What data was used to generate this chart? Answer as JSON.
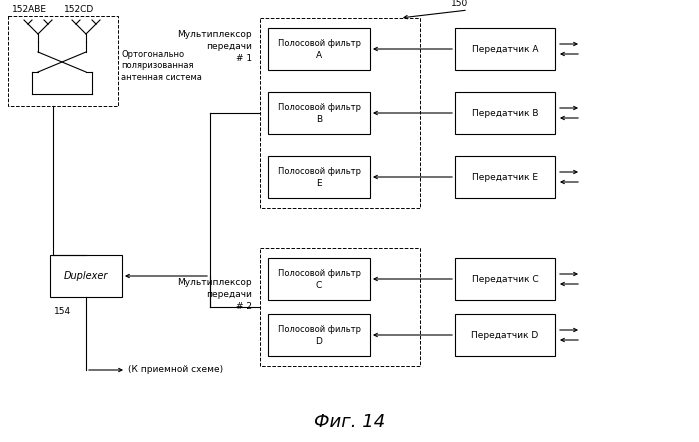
{
  "title": "Фиг. 14",
  "bg_color": "#ffffff",
  "label_150": "150",
  "label_152ABE": "152ABE",
  "label_152CD": "152CD",
  "label_antenna": "Ортогонально\nполяризованная\nантенная система",
  "label_mux1": "Мультиплексор\nпередачи\n# 1",
  "label_mux2": "Мультиплексор\nпередачи\n# 2",
  "label_duplexer": "Duplexer",
  "label_154": "154",
  "label_receiver": "(К приемной схеме)",
  "filters_top": [
    "Полосовой фильтр\nA",
    "Полосовой фильтр\nB",
    "Полосовой фильтр\nE"
  ],
  "filters_bottom": [
    "Полосовой фильтр\nC",
    "Полосовой фильтр\nD"
  ],
  "transmitters_top": [
    "Передатчик A",
    "Передатчик B",
    "Передатчик E"
  ],
  "transmitters_bottom": [
    "Передатчик C",
    "Передатчик D"
  ]
}
